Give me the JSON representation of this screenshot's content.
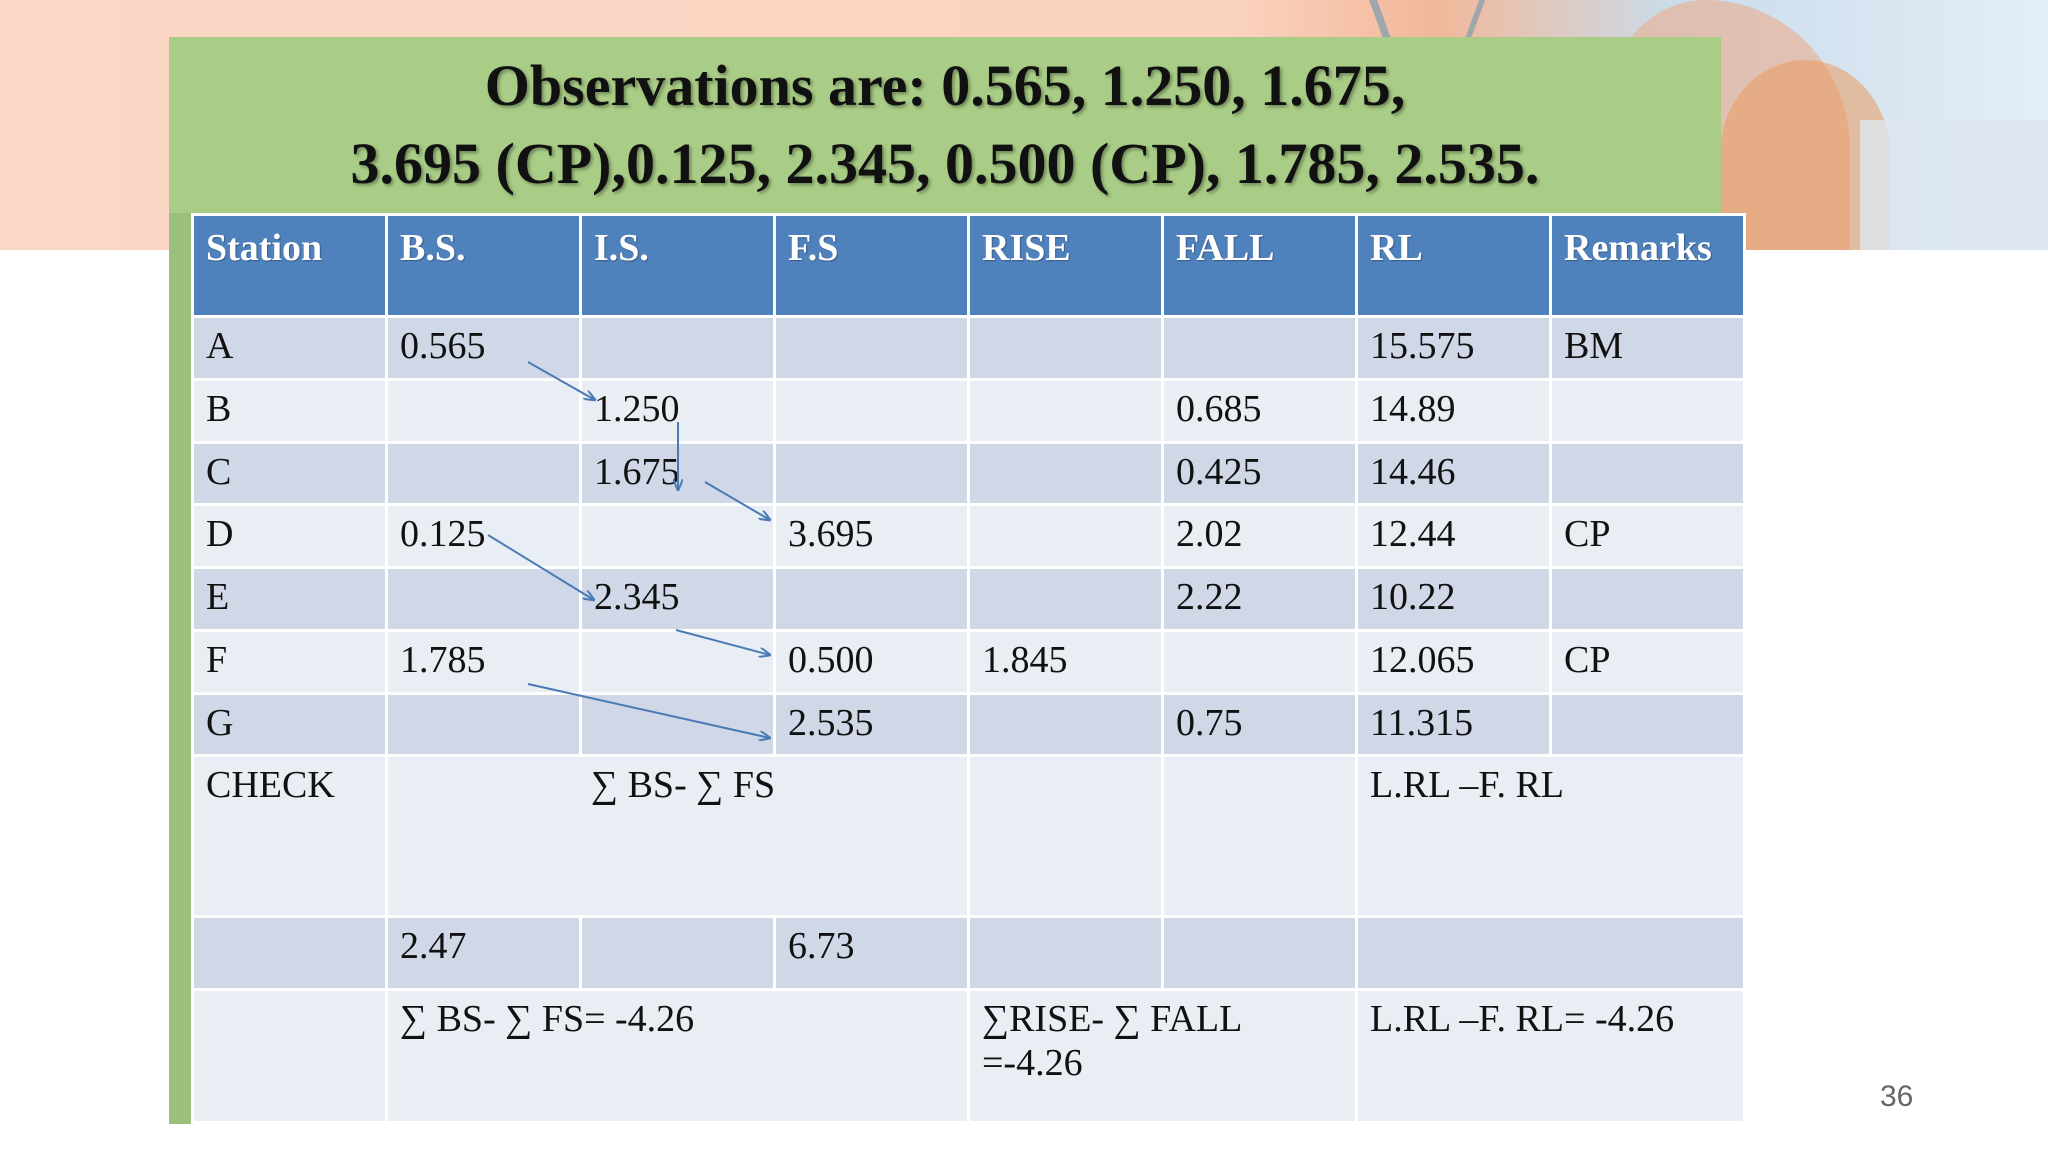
{
  "slide": {
    "title_line1": "Observations are: 0.565, 1.250, 1.675,",
    "title_line2": "3.695 (CP),0.125, 2.345, 0.500 (CP), 1.785, 2.535.",
    "page_number": "36"
  },
  "table": {
    "headers": [
      "Station",
      "B.S.",
      "I.S.",
      "F.S",
      "RISE",
      "FALL",
      "RL",
      "Remarks"
    ],
    "rows": [
      [
        "A",
        "0.565",
        "",
        "",
        "",
        "",
        "15.575",
        "BM"
      ],
      [
        "B",
        "",
        "1.250",
        "",
        "",
        "0.685",
        "14.89",
        ""
      ],
      [
        "C",
        "",
        "1.675",
        "",
        "",
        "0.425",
        "14.46",
        ""
      ],
      [
        "D",
        "0.125",
        "",
        "3.695",
        "",
        "2.02",
        "12.44",
        "CP"
      ],
      [
        "E",
        "",
        "2.345",
        "",
        "",
        "2.22",
        "10.22",
        ""
      ],
      [
        "F",
        "1.785",
        "",
        "0.500",
        "1.845",
        "",
        "12.065",
        "CP"
      ],
      [
        "G",
        "",
        "",
        "2.535",
        "",
        "0.75",
        "11.315",
        ""
      ]
    ],
    "check": {
      "label": "CHECK",
      "bs_fs": "∑ BS- ∑ FS",
      "rl": "L.RL –F. RL"
    },
    "sums": {
      "bs": "2.47",
      "fs": "6.73"
    },
    "results": {
      "bs_fs": "∑ BS- ∑ FS=  -4.26",
      "rise_fall_line1": "∑RISE- ∑ FALL",
      "rise_fall_line2": "=-4.26",
      "rl": "L.RL –F. RL= -4.26"
    }
  },
  "colors": {
    "header_blue": "#4f81bd",
    "row_dark": "#d0d8e8",
    "row_light": "#e9edf4",
    "title_green": "#a9cd86",
    "arrow": "#4a7ab5"
  }
}
